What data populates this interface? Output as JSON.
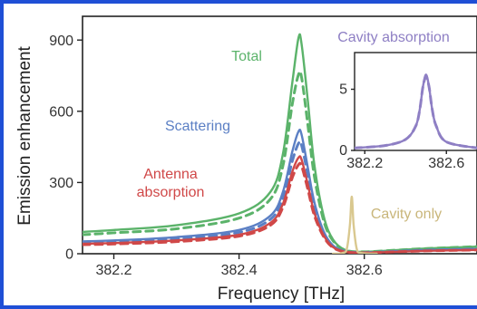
{
  "chart_data": [
    {
      "type": "line",
      "xlabel": "Frequency [THz]",
      "ylabel": "Emission enhancement",
      "xlim": [
        382.15,
        382.78
      ],
      "ylim": [
        0,
        1000
      ],
      "x_ticks": [
        382.2,
        382.4,
        382.6
      ],
      "x_tick_labels": [
        "382.2",
        "382.4",
        "382.6"
      ],
      "y_ticks": [
        0,
        300,
        600,
        900
      ],
      "y_tick_labels": [
        "0",
        "300",
        "600",
        "900"
      ],
      "grid": false,
      "colors": {
        "total": "#5bb36a",
        "scattering": "#5b7fc4",
        "antenna": "#d04848",
        "cavity_only": "#d9c88f",
        "cavity_absorption": "#8e7fc4"
      },
      "series": [
        {
          "name": "Total",
          "color": "#5bb36a",
          "style": "solid",
          "x": [
            382.15,
            382.2,
            382.3,
            382.4,
            382.45,
            382.47,
            382.485,
            382.495,
            382.5,
            382.51,
            382.52,
            382.535,
            382.55,
            382.57,
            382.6,
            382.65,
            382.7,
            382.78
          ],
          "y": [
            92,
            100,
            120,
            170,
            260,
            420,
            720,
            910,
            880,
            640,
            380,
            160,
            60,
            15,
            8,
            15,
            22,
            30
          ]
        },
        {
          "name": "Total",
          "color": "#5bb36a",
          "style": "dashed",
          "x": [
            382.15,
            382.2,
            382.3,
            382.4,
            382.45,
            382.47,
            382.485,
            382.495,
            382.5,
            382.51,
            382.52,
            382.535,
            382.55,
            382.57,
            382.6,
            382.65,
            382.7,
            382.78
          ],
          "y": [
            80,
            88,
            105,
            150,
            230,
            370,
            630,
            755,
            740,
            540,
            330,
            140,
            55,
            15,
            8,
            15,
            22,
            30
          ]
        },
        {
          "name": "Scattering",
          "color": "#5b7fc4",
          "style": "solid",
          "x": [
            382.15,
            382.2,
            382.3,
            382.4,
            382.45,
            382.47,
            382.485,
            382.495,
            382.5,
            382.51,
            382.52,
            382.535,
            382.55,
            382.57,
            382.6,
            382.65,
            382.7,
            382.78
          ],
          "y": [
            52,
            56,
            70,
            100,
            160,
            260,
            430,
            515,
            500,
            360,
            220,
            95,
            35,
            10,
            5,
            10,
            15,
            20
          ]
        },
        {
          "name": "Scattering",
          "color": "#5b7fc4",
          "style": "dashed",
          "x": [
            382.15,
            382.2,
            382.3,
            382.4,
            382.45,
            382.47,
            382.485,
            382.495,
            382.5,
            382.51,
            382.52,
            382.535,
            382.55,
            382.57,
            382.6,
            382.65,
            382.7,
            382.78
          ],
          "y": [
            45,
            49,
            62,
            90,
            145,
            235,
            390,
            465,
            455,
            330,
            200,
            88,
            32,
            10,
            5,
            10,
            15,
            20
          ]
        },
        {
          "name": "Antenna absorption",
          "color": "#d04848",
          "style": "solid",
          "x": [
            382.15,
            382.2,
            382.3,
            382.4,
            382.45,
            382.47,
            382.485,
            382.495,
            382.5,
            382.51,
            382.52,
            382.535,
            382.55,
            382.57,
            382.6,
            382.65,
            382.7,
            382.78
          ],
          "y": [
            42,
            45,
            56,
            80,
            130,
            210,
            345,
            405,
            395,
            290,
            175,
            78,
            28,
            8,
            4,
            8,
            12,
            16
          ]
        },
        {
          "name": "Antenna absorption",
          "color": "#d04848",
          "style": "dashed",
          "x": [
            382.15,
            382.2,
            382.3,
            382.4,
            382.45,
            382.47,
            382.485,
            382.495,
            382.5,
            382.51,
            382.52,
            382.535,
            382.55,
            382.57,
            382.6,
            382.65,
            382.7,
            382.78
          ],
          "y": [
            38,
            41,
            51,
            74,
            120,
            195,
            320,
            375,
            368,
            270,
            163,
            72,
            26,
            8,
            4,
            8,
            12,
            16
          ]
        },
        {
          "name": "Cavity only",
          "color": "#d9c88f",
          "style": "solid",
          "x": [
            382.55,
            382.565,
            382.572,
            382.577,
            382.58,
            382.583,
            382.588,
            382.595,
            382.62
          ],
          "y": [
            0,
            3,
            20,
            120,
            240,
            120,
            20,
            3,
            0
          ]
        }
      ],
      "annotations": [
        "Total",
        "Scattering",
        "Antenna",
        "absorption",
        "Cavity only"
      ]
    },
    {
      "type": "line",
      "title": "Cavity absorption",
      "xlim": [
        382.15,
        382.75
      ],
      "ylim": [
        0,
        8
      ],
      "x_ticks": [
        382.2,
        382.6
      ],
      "x_tick_labels": [
        "382.2",
        "382.6"
      ],
      "y_ticks": [
        0,
        5
      ],
      "y_tick_labels": [
        "0",
        "5"
      ],
      "series": [
        {
          "name": "Cavity absorption",
          "color": "#8e7fc4",
          "style": "solid",
          "x": [
            382.15,
            382.3,
            382.4,
            382.45,
            382.47,
            382.485,
            382.5,
            382.515,
            382.53,
            382.55,
            382.6,
            382.75
          ],
          "y": [
            0.2,
            0.4,
            0.9,
            2.0,
            3.4,
            5.2,
            6.2,
            5.2,
            3.4,
            2.0,
            0.7,
            0.2
          ]
        },
        {
          "name": "Cavity absorption",
          "color": "#8e7fc4",
          "style": "dashed",
          "x": [
            382.15,
            382.3,
            382.4,
            382.45,
            382.47,
            382.485,
            382.5,
            382.515,
            382.53,
            382.55,
            382.6,
            382.75
          ],
          "y": [
            0.2,
            0.4,
            0.9,
            2.0,
            3.4,
            5.2,
            6.0,
            5.2,
            3.4,
            2.0,
            0.7,
            0.2
          ]
        }
      ]
    }
  ]
}
